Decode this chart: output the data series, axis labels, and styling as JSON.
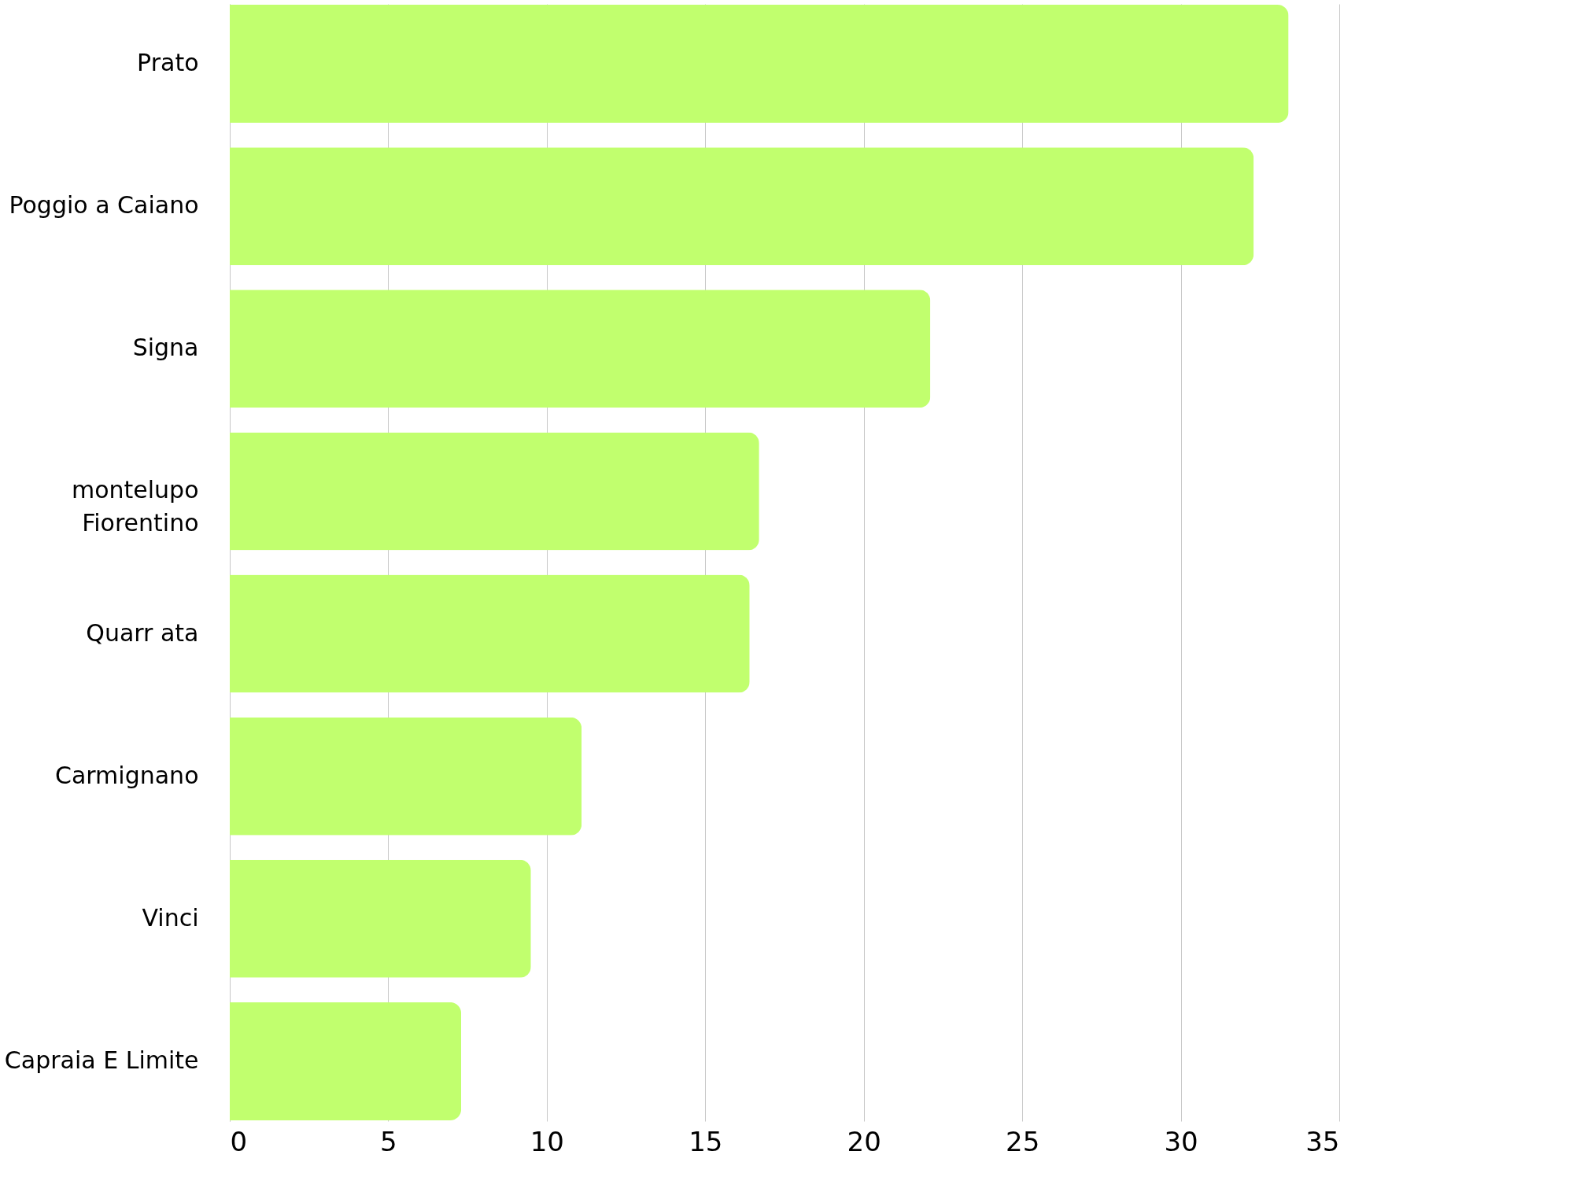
{
  "chart_data": {
    "type": "bar",
    "orientation": "horizontal",
    "categories": [
      "Prato",
      "Poggio a Caiano",
      "Signa",
      "montelupo\nFiorentino",
      "Quarr ata",
      "Carmignano",
      "Vinci",
      "Capraia E Limite"
    ],
    "values": [
      33.4,
      32.3,
      22.1,
      16.7,
      16.4,
      11.1,
      9.5,
      7.3
    ],
    "color": "#c1ff6e",
    "xlim": [
      0,
      35
    ],
    "xticks": [
      0,
      5,
      10,
      15,
      20,
      25,
      30,
      35
    ],
    "grid": "x"
  }
}
